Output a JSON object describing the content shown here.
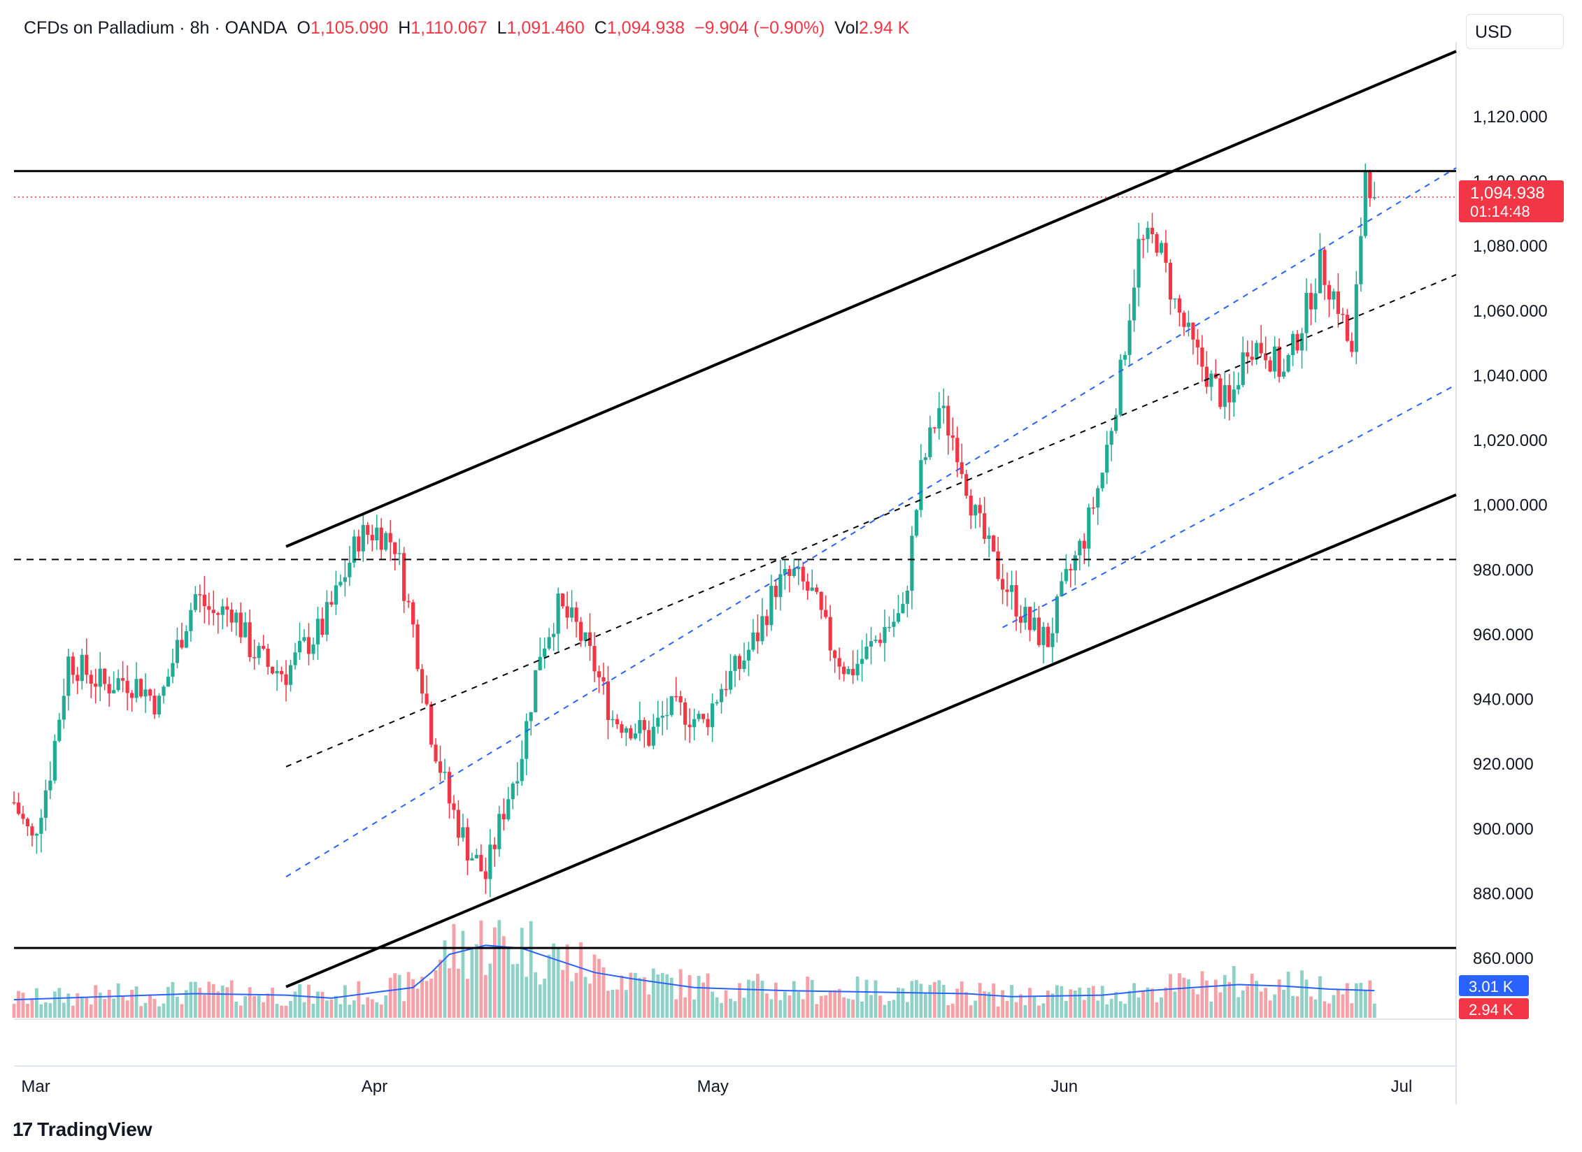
{
  "header": {
    "symbol": "CFDs on Palladium · 8h · OANDA",
    "open_label": "O",
    "open": "1,105.090",
    "high_label": "H",
    "high": "1,110.067",
    "low_label": "L",
    "low": "1,091.460",
    "close_label": "C",
    "close": "1,094.938",
    "change": "−9.904 (−0.90%)",
    "vol_label": "Vol",
    "vol": "2.94 K"
  },
  "currency": "USD",
  "last_price": {
    "value": "1,094.938",
    "countdown": "01:14:48"
  },
  "volume_badges": {
    "ma": "3.01 K",
    "vol": "2.94 K"
  },
  "colors": {
    "up": "#22ab94",
    "down": "#f23645",
    "channel": "#000000",
    "inner": "#2962ff",
    "vol_ma": "#2962ff",
    "vol_up": "#8fd1c6",
    "vol_down": "#f6a1a7"
  },
  "branding": "TradingView",
  "chart_data": {
    "type": "candlestick",
    "interval": "8h",
    "y_ticks": [
      "1,120.000",
      "1,100.000",
      "1,080.000",
      "1,060.000",
      "1,040.000",
      "1,020.000",
      "1,000.000",
      "980.000",
      "960.000",
      "940.000",
      "920.000",
      "900.000",
      "880.000",
      "860.000"
    ],
    "y_range": [
      855,
      1140
    ],
    "x_labels": [
      "Mar",
      "Apr",
      "May",
      "Jun",
      "Jul"
    ],
    "x_range": [
      0,
      300
    ],
    "x_label_positions": [
      5,
      80,
      154,
      232,
      307
    ],
    "levels": [
      {
        "name": "resistance",
        "price": 1103,
        "style": "solid"
      },
      {
        "name": "support",
        "price": 863,
        "style": "solid"
      },
      {
        "name": "mid-level",
        "price": 983,
        "style": "dashed"
      },
      {
        "name": "last",
        "price": 1094.938,
        "style": "dotted"
      }
    ],
    "channel_lines": [
      {
        "name": "upper",
        "style": "solid",
        "from": [
          60,
          987
        ],
        "to": [
          318,
          1140
        ]
      },
      {
        "name": "lower",
        "style": "solid",
        "from": [
          60,
          851
        ],
        "to": [
          318,
          1003
        ]
      },
      {
        "name": "middle",
        "style": "dashed-black",
        "from": [
          60,
          919
        ],
        "to": [
          318,
          1071
        ]
      },
      {
        "name": "upper-inner",
        "style": "dashed-blue",
        "from": [
          60,
          885
        ],
        "to": [
          318,
          1104
        ]
      },
      {
        "name": "lower-inner",
        "style": "dashed-blue",
        "from": [
          218,
          962
        ],
        "to": [
          318,
          1037
        ]
      }
    ],
    "close_path": [
      [
        0,
        908
      ],
      [
        4,
        896
      ],
      [
        8,
        918
      ],
      [
        12,
        952
      ],
      [
        16,
        948
      ],
      [
        20,
        944
      ],
      [
        24,
        946
      ],
      [
        28,
        944
      ],
      [
        32,
        938
      ],
      [
        36,
        956
      ],
      [
        40,
        972
      ],
      [
        44,
        966
      ],
      [
        48,
        968
      ],
      [
        52,
        956
      ],
      [
        56,
        950
      ],
      [
        60,
        948
      ],
      [
        64,
        956
      ],
      [
        68,
        962
      ],
      [
        72,
        975
      ],
      [
        76,
        990
      ],
      [
        80,
        992
      ],
      [
        84,
        988
      ],
      [
        88,
        962
      ],
      [
        92,
        930
      ],
      [
        96,
        908
      ],
      [
        100,
        894
      ],
      [
        104,
        885
      ],
      [
        108,
        906
      ],
      [
        112,
        924
      ],
      [
        116,
        955
      ],
      [
        120,
        968
      ],
      [
        124,
        962
      ],
      [
        128,
        950
      ],
      [
        132,
        934
      ],
      [
        136,
        932
      ],
      [
        140,
        928
      ],
      [
        144,
        936
      ],
      [
        148,
        936
      ],
      [
        152,
        932
      ],
      [
        156,
        944
      ],
      [
        160,
        950
      ],
      [
        164,
        960
      ],
      [
        168,
        975
      ],
      [
        172,
        978
      ],
      [
        176,
        972
      ],
      [
        180,
        957
      ],
      [
        184,
        948
      ],
      [
        188,
        954
      ],
      [
        192,
        962
      ],
      [
        196,
        966
      ],
      [
        200,
        1010
      ],
      [
        204,
        1030
      ],
      [
        208,
        1018
      ],
      [
        212,
        996
      ],
      [
        216,
        982
      ],
      [
        220,
        972
      ],
      [
        224,
        962
      ],
      [
        228,
        958
      ],
      [
        232,
        976
      ],
      [
        236,
        990
      ],
      [
        240,
        1010
      ],
      [
        244,
        1040
      ],
      [
        248,
        1080
      ],
      [
        252,
        1082
      ],
      [
        256,
        1062
      ],
      [
        260,
        1048
      ],
      [
        264,
        1038
      ],
      [
        268,
        1030
      ],
      [
        272,
        1050
      ],
      [
        276,
        1048
      ],
      [
        280,
        1040
      ],
      [
        284,
        1056
      ],
      [
        288,
        1074
      ],
      [
        292,
        1062
      ],
      [
        295,
        1045
      ],
      [
        298,
        1104
      ],
      [
        300,
        1094.938
      ]
    ],
    "volume_ma_path": [
      [
        0,
        1.2
      ],
      [
        20,
        1.4
      ],
      [
        40,
        1.6
      ],
      [
        60,
        1.5
      ],
      [
        70,
        1.3
      ],
      [
        80,
        1.7
      ],
      [
        88,
        2.0
      ],
      [
        92,
        3.0
      ],
      [
        96,
        4.2
      ],
      [
        104,
        4.8
      ],
      [
        112,
        4.6
      ],
      [
        120,
        3.8
      ],
      [
        128,
        3.0
      ],
      [
        136,
        2.6
      ],
      [
        150,
        2.0
      ],
      [
        170,
        1.8
      ],
      [
        190,
        1.7
      ],
      [
        210,
        1.6
      ],
      [
        220,
        1.4
      ],
      [
        240,
        1.5
      ],
      [
        250,
        1.8
      ],
      [
        260,
        2.0
      ],
      [
        270,
        2.2
      ],
      [
        280,
        2.1
      ],
      [
        290,
        1.9
      ],
      [
        300,
        1.8
      ]
    ]
  }
}
